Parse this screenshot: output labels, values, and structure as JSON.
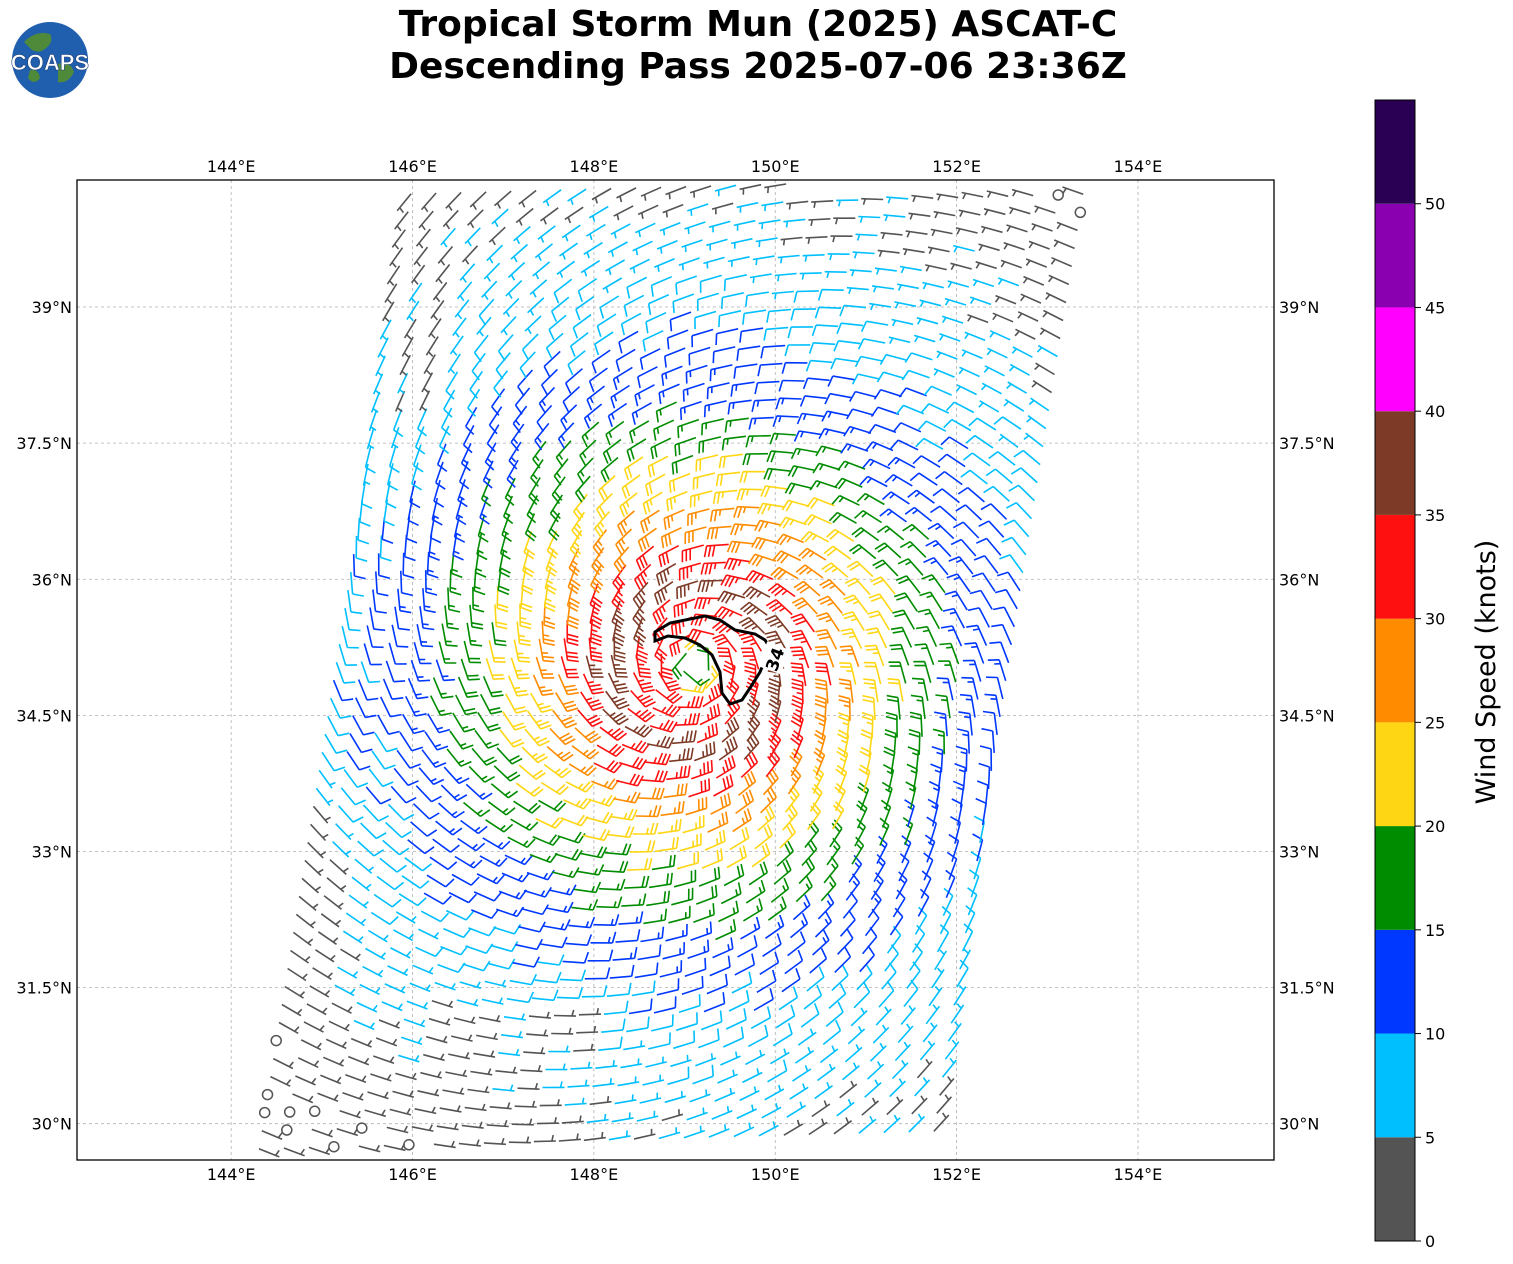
{
  "header": {
    "title_line1": "Tropical Storm Mun (2025) ASCAT-C",
    "title_line2": "Descending Pass 2025-07-06 23:36Z",
    "logo_text": "COAPS"
  },
  "map": {
    "lon_ticks": [
      "144°E",
      "146°E",
      "148°E",
      "150°E",
      "152°E",
      "154°E"
    ],
    "lat_ticks": [
      "39°N",
      "37.5°N",
      "36°N",
      "34.5°N",
      "33°N",
      "31.5°N",
      "30°N"
    ],
    "lon_range": [
      142.3,
      155.5
    ],
    "lat_range": [
      29.6,
      40.4
    ],
    "center": {
      "lon": 149.1,
      "lat": 35.05
    },
    "contour_label": "34"
  },
  "colorbar": {
    "label": "Wind Speed (knots)",
    "ticks": [
      "0",
      "5",
      "10",
      "15",
      "20",
      "25",
      "30",
      "35",
      "40",
      "45",
      "50"
    ],
    "bands": [
      {
        "min": 0,
        "max": 5,
        "color": "#545454"
      },
      {
        "min": 5,
        "max": 10,
        "color": "#00bfff"
      },
      {
        "min": 10,
        "max": 15,
        "color": "#0038ff"
      },
      {
        "min": 15,
        "max": 20,
        "color": "#008c00"
      },
      {
        "min": 20,
        "max": 25,
        "color": "#ffd614"
      },
      {
        "min": 25,
        "max": 30,
        "color": "#ff8c00"
      },
      {
        "min": 30,
        "max": 35,
        "color": "#ff1010"
      },
      {
        "min": 35,
        "max": 40,
        "color": "#7d3a26"
      },
      {
        "min": 40,
        "max": 45,
        "color": "#ff00ff"
      },
      {
        "min": 45,
        "max": 50,
        "color": "#8a00b0"
      },
      {
        "min": 50,
        "max": 55,
        "color": "#2a0055"
      }
    ]
  }
}
